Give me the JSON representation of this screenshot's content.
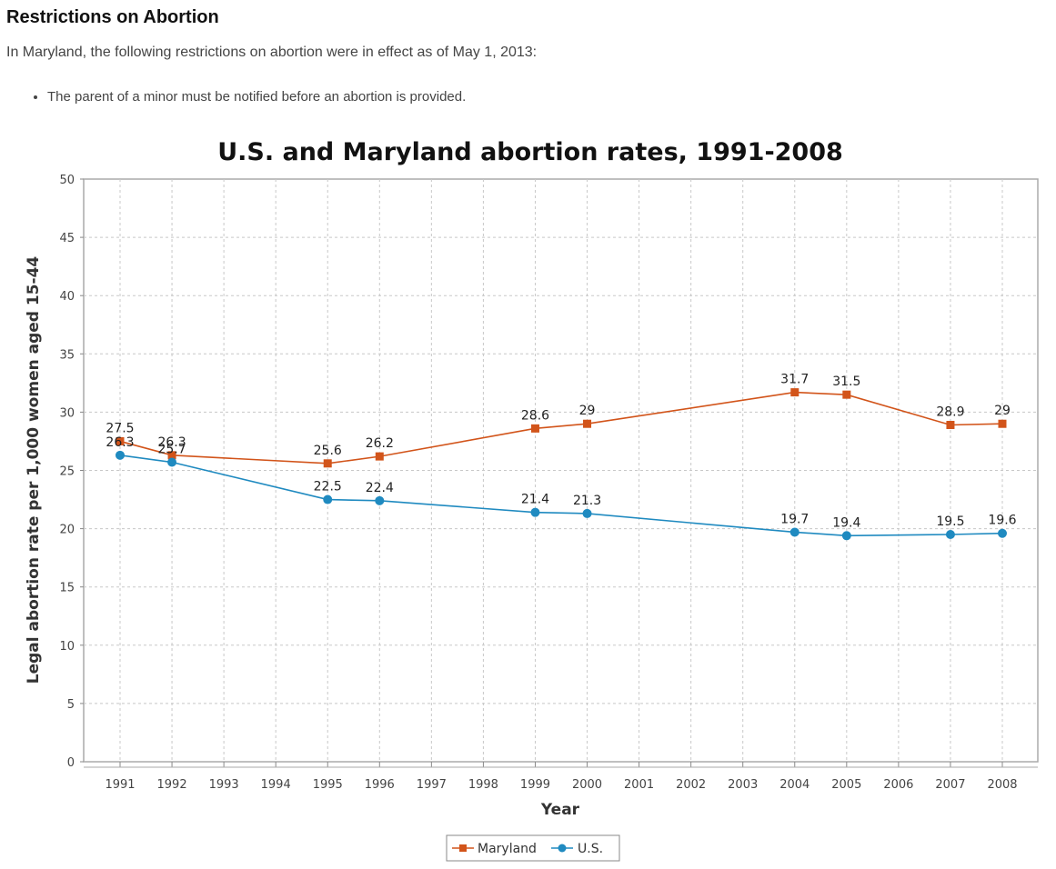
{
  "page": {
    "heading": "Restrictions on Abortion",
    "intro": "In Maryland, the following restrictions on abortion were in effect as of May 1, 2013:",
    "restrictions": [
      "The parent of a minor must be notified before an abortion is provided."
    ]
  },
  "chart_data": {
    "type": "line",
    "title": "U.S. and Maryland abortion rates, 1991-2008",
    "xlabel": "Year",
    "ylabel": "Legal abortion rate per 1,000 women aged 15-44",
    "ylim": [
      0,
      50
    ],
    "yticks": [
      0,
      5,
      10,
      15,
      20,
      25,
      30,
      35,
      40,
      45,
      50
    ],
    "categories": [
      "1991",
      "1992",
      "1993",
      "1994",
      "1995",
      "1996",
      "1997",
      "1998",
      "1999",
      "2000",
      "2001",
      "2002",
      "2003",
      "2004",
      "2005",
      "2006",
      "2007",
      "2008"
    ],
    "grid": true,
    "legend_position": "bottom",
    "series": [
      {
        "name": "Maryland",
        "color": "#d2541a",
        "marker": "square",
        "x": [
          "1991",
          "1992",
          "1995",
          "1996",
          "1999",
          "2000",
          "2004",
          "2005",
          "2007",
          "2008"
        ],
        "values": [
          27.5,
          26.3,
          25.6,
          26.2,
          28.6,
          29,
          31.7,
          31.5,
          28.9,
          29
        ]
      },
      {
        "name": "U.S.",
        "color": "#1f8ac0",
        "marker": "circle",
        "x": [
          "1991",
          "1992",
          "1995",
          "1996",
          "1999",
          "2000",
          "2004",
          "2005",
          "2007",
          "2008"
        ],
        "values": [
          26.3,
          25.7,
          22.5,
          22.4,
          21.4,
          21.3,
          19.7,
          19.4,
          19.5,
          19.6
        ]
      }
    ]
  }
}
